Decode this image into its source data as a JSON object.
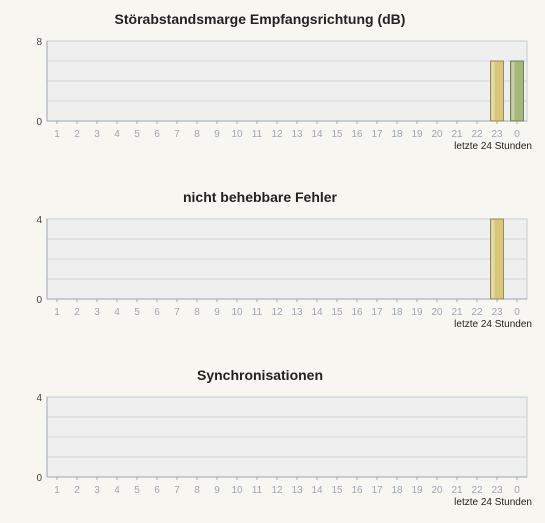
{
  "chart_data": [
    {
      "type": "bar",
      "title": "Störabstandsmarge Empfangsrichtung (dB)",
      "xlabel": "letzte 24 Stunden",
      "ylabel": "",
      "categories": [
        "1",
        "2",
        "3",
        "4",
        "5",
        "6",
        "7",
        "8",
        "9",
        "10",
        "11",
        "12",
        "13",
        "14",
        "15",
        "16",
        "17",
        "18",
        "19",
        "20",
        "21",
        "22",
        "23",
        "0"
      ],
      "values": [
        0,
        0,
        0,
        0,
        0,
        0,
        0,
        0,
        0,
        0,
        0,
        0,
        0,
        0,
        0,
        0,
        0,
        0,
        0,
        0,
        0,
        0,
        6,
        6
      ],
      "ylim": [
        0,
        8
      ],
      "yticks": [
        "0",
        "8"
      ],
      "grid": true,
      "bar_colors": {
        "23": "#d8c77a",
        "0": "#a6b77a"
      }
    },
    {
      "type": "bar",
      "title": "nicht behebbare Fehler",
      "xlabel": "letzte 24 Stunden",
      "ylabel": "",
      "categories": [
        "1",
        "2",
        "3",
        "4",
        "5",
        "6",
        "7",
        "8",
        "9",
        "10",
        "11",
        "12",
        "13",
        "14",
        "15",
        "16",
        "17",
        "18",
        "19",
        "20",
        "21",
        "22",
        "23",
        "0"
      ],
      "values": [
        0,
        0,
        0,
        0,
        0,
        0,
        0,
        0,
        0,
        0,
        0,
        0,
        0,
        0,
        0,
        0,
        0,
        0,
        0,
        0,
        0,
        0,
        4,
        0
      ],
      "ylim": [
        0,
        4
      ],
      "yticks": [
        "0",
        "4"
      ],
      "grid": true,
      "bar_colors": {
        "23": "#d8c77a"
      }
    },
    {
      "type": "bar",
      "title": "Synchronisationen",
      "xlabel": "letzte 24 Stunden",
      "ylabel": "",
      "categories": [
        "1",
        "2",
        "3",
        "4",
        "5",
        "6",
        "7",
        "8",
        "9",
        "10",
        "11",
        "12",
        "13",
        "14",
        "15",
        "16",
        "17",
        "18",
        "19",
        "20",
        "21",
        "22",
        "23",
        "0"
      ],
      "values": [
        0,
        0,
        0,
        0,
        0,
        0,
        0,
        0,
        0,
        0,
        0,
        0,
        0,
        0,
        0,
        0,
        0,
        0,
        0,
        0,
        0,
        0,
        0,
        0
      ],
      "ylim": [
        0,
        4
      ],
      "yticks": [
        "0",
        "4"
      ],
      "grid": true,
      "bar_colors": {}
    }
  ]
}
